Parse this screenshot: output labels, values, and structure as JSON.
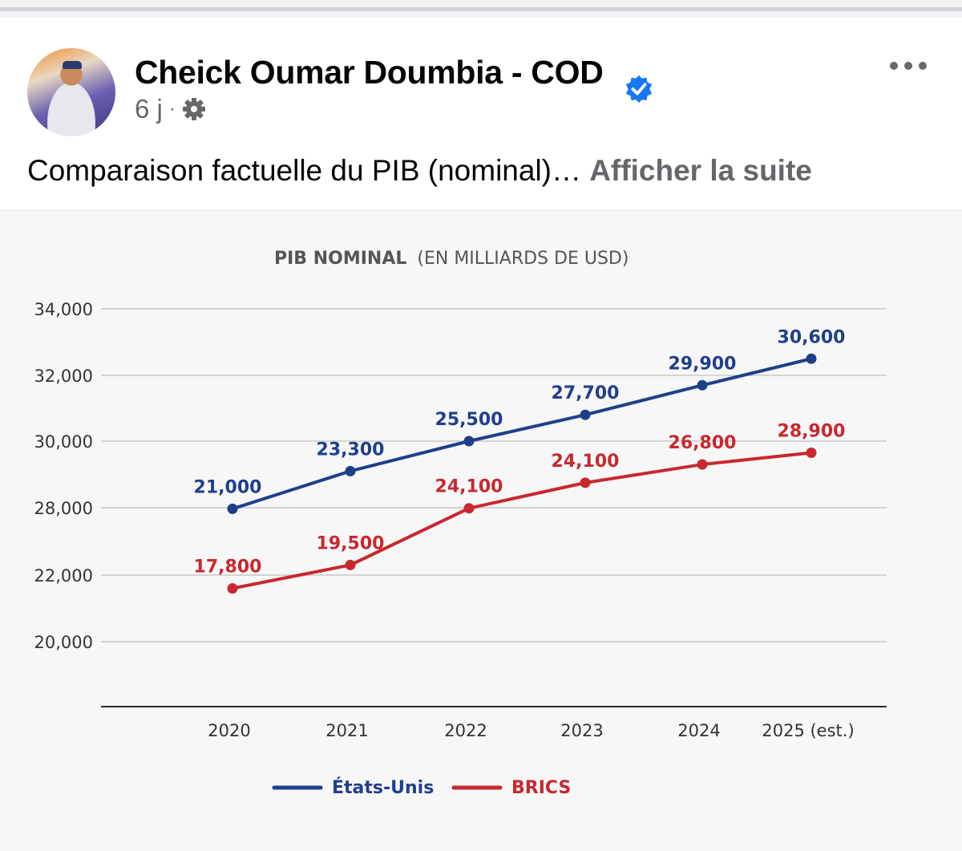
{
  "post": {
    "author": "Cheick Oumar Doumbia - COD",
    "time": "6 j",
    "text": "Comparaison factuelle du PIB (nominal)…",
    "see_more": "Afficher la suite"
  },
  "icons": {
    "verified": "verified-badge-icon",
    "privacy": "gear-icon",
    "more": "more-options-icon"
  },
  "colors": {
    "us": "#1f3f8c",
    "brics": "#c8282e",
    "verified": "#1877f2",
    "grid": "#c9c9c9"
  },
  "chart_data": {
    "type": "line",
    "title": "PIB NOMINAL",
    "subtitle": "(EN MILLIARDS DE USD)",
    "xlabel": "",
    "ylabel": "",
    "categories": [
      "2020",
      "2021",
      "2022",
      "2023",
      "2024",
      "2025 (est.)"
    ],
    "y_ticks": [
      "34,000",
      "32,000",
      "30,000",
      "28,000",
      "22,000",
      "20,000"
    ],
    "grid": true,
    "legend_position": "bottom",
    "series": [
      {
        "name": "États-Unis",
        "color": "#1f3f8c",
        "values": [
          21000,
          23300,
          25500,
          27700,
          29900,
          30600
        ],
        "labels": [
          "21,000",
          "23,300",
          "25,500",
          "27,700",
          "29,900",
          "30,600"
        ],
        "plotted_levels": [
          27900,
          29100,
          30000,
          30800,
          31700,
          32500
        ]
      },
      {
        "name": "BRICS",
        "color": "#c8282e",
        "values": [
          17800,
          19500,
          24100,
          24100,
          26800,
          28900
        ],
        "labels": [
          "17,800",
          "19,500",
          "24,100",
          "24,100",
          "26,800",
          "28,900"
        ],
        "plotted_levels": [
          21600,
          22900,
          27950,
          28750,
          29300,
          29650
        ]
      }
    ]
  }
}
